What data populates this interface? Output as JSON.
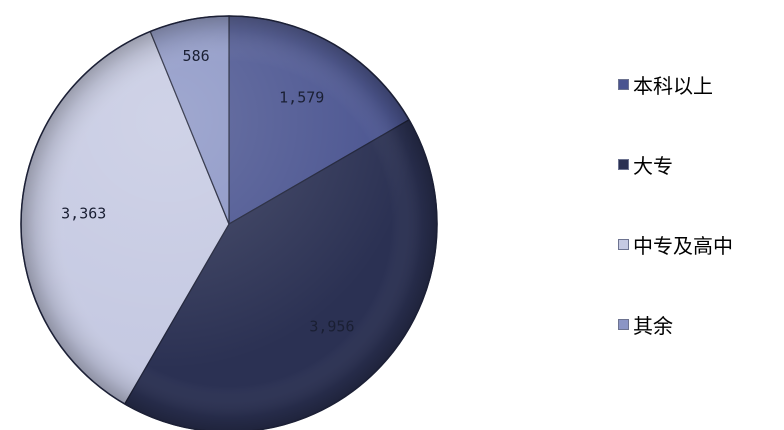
{
  "chart_data": {
    "type": "pie",
    "title": "",
    "categories": [
      "本科以上",
      "大专",
      "中专及高中",
      "其余"
    ],
    "values": [
      1579,
      3956,
      3363,
      586
    ],
    "labels": [
      "1,579",
      "3,956",
      "3,363",
      "586"
    ],
    "colors": [
      "#4a5490",
      "#2b3153",
      "#c5c9e2",
      "#8b95c5"
    ],
    "start_angle_deg": 0,
    "direction": "clockwise",
    "legend_position": "right"
  }
}
